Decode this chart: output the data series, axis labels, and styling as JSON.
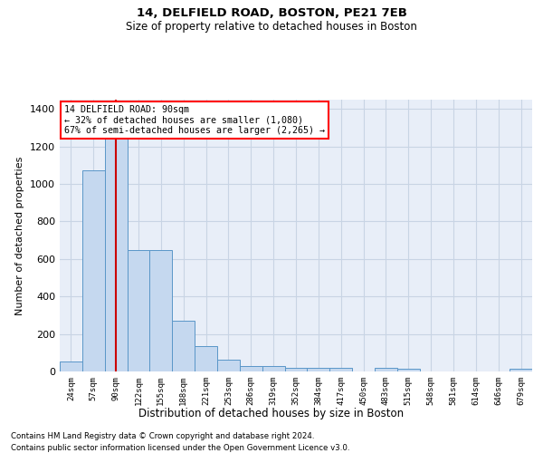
{
  "title1": "14, DELFIELD ROAD, BOSTON, PE21 7EB",
  "title2": "Size of property relative to detached houses in Boston",
  "xlabel": "Distribution of detached houses by size in Boston",
  "ylabel": "Number of detached properties",
  "footnote1": "Contains HM Land Registry data © Crown copyright and database right 2024.",
  "footnote2": "Contains public sector information licensed under the Open Government Licence v3.0.",
  "annotation_line1": "14 DELFIELD ROAD: 90sqm",
  "annotation_line2": "← 32% of detached houses are smaller (1,080)",
  "annotation_line3": "67% of semi-detached houses are larger (2,265) →",
  "bar_color": "#c5d8ef",
  "bar_edge_color": "#5a96c8",
  "marker_line_color": "#cc0000",
  "grid_color": "#c8d4e4",
  "bg_color": "#e8eef8",
  "categories": [
    "24sqm",
    "57sqm",
    "90sqm",
    "122sqm",
    "155sqm",
    "188sqm",
    "221sqm",
    "253sqm",
    "286sqm",
    "319sqm",
    "352sqm",
    "384sqm",
    "417sqm",
    "450sqm",
    "483sqm",
    "515sqm",
    "548sqm",
    "581sqm",
    "614sqm",
    "646sqm",
    "679sqm"
  ],
  "values": [
    55,
    1075,
    1340,
    650,
    650,
    270,
    135,
    65,
    30,
    30,
    20,
    20,
    20,
    0,
    20,
    15,
    0,
    0,
    0,
    0,
    15
  ],
  "ylim": [
    0,
    1450
  ],
  "yticks": [
    0,
    200,
    400,
    600,
    800,
    1000,
    1200,
    1400
  ],
  "marker_idx": 2
}
